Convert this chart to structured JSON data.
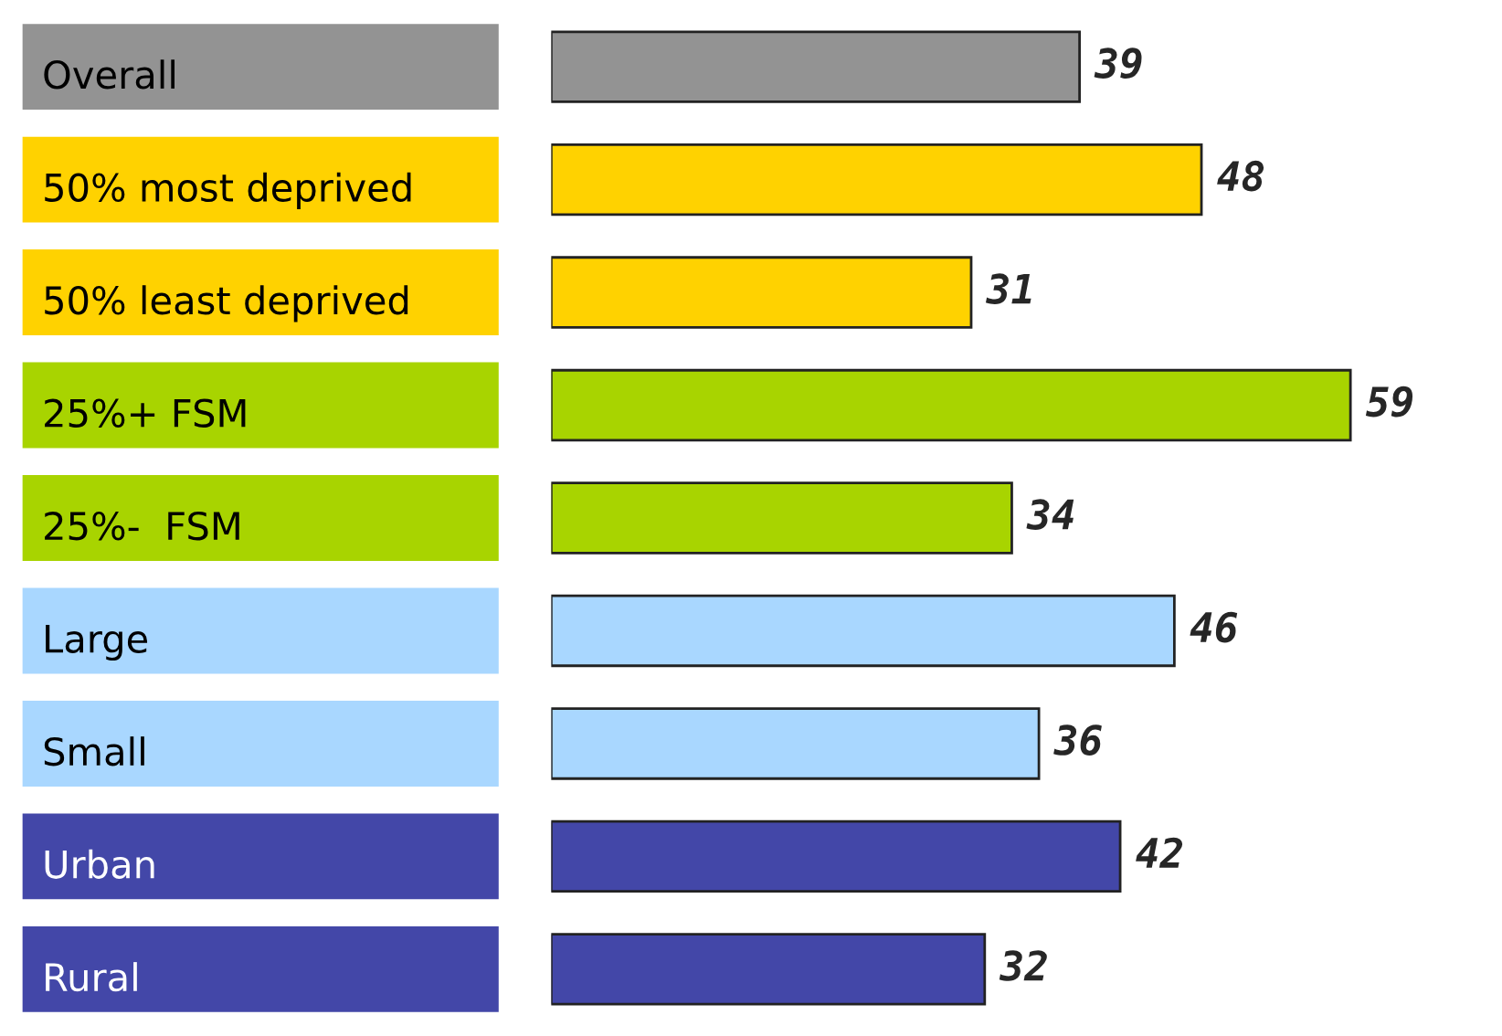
{
  "chart_data": {
    "type": "bar",
    "orientation": "horizontal",
    "data_labels": true,
    "categories": [
      "Overall",
      "50% most deprived",
      "50% least deprived",
      "25%+ FSM",
      "25%-  FSM",
      "Large",
      "Small",
      "Urban",
      "Rural"
    ],
    "values": [
      39,
      48,
      31,
      59,
      34,
      46,
      36,
      42,
      32
    ],
    "colors": [
      "#939393",
      "#ffd200",
      "#ffd200",
      "#a8d400",
      "#a8d400",
      "#a9d7ff",
      "#a9d7ff",
      "#4347a8",
      "#4347a8"
    ]
  }
}
